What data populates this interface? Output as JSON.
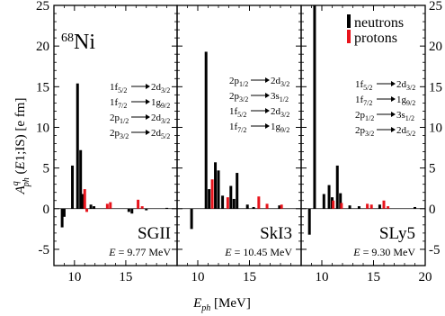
{
  "chart_data": {
    "type": "bar",
    "xlabel_symbol": "E",
    "xlabel_sub": "ph",
    "xlabel_unit": "[MeV]",
    "ylabel": {
      "A": "A",
      "sup": "q",
      "sub": "ph",
      "args_open": " (",
      "arg_E": "E",
      "args_rest": "1;IS)",
      "unit": "[e fm]"
    },
    "nucleus": {
      "mass": "68",
      "symbol": "Ni"
    },
    "legend": [
      {
        "name": "neutrons",
        "color": "#000000"
      },
      {
        "name": "protons",
        "color": "#e8141c"
      }
    ],
    "ylim": [
      -7,
      25
    ],
    "yticks": [
      -5,
      0,
      5,
      10,
      15,
      20,
      25
    ],
    "ytick_labels": [
      "-5",
      "0",
      "5",
      "10",
      "15",
      "20",
      "25"
    ],
    "panels": [
      {
        "name": "SGII",
        "energy_symbol": "E",
        "energy_label": " = 9.77 MeV",
        "xlim": [
          8,
          20
        ],
        "xticks": [
          10,
          15,
          20
        ],
        "xtick_labels": [
          "10",
          "15",
          ""
        ],
        "transitions": [
          {
            "from": "1f",
            "from_sub": "5/2",
            "to": "2d",
            "to_sub": "3/2"
          },
          {
            "from": "1f",
            "from_sub": "7/2",
            "to": "1g",
            "to_sub": "9/2"
          },
          {
            "from": "2p",
            "from_sub": "1/2",
            "to": "2d",
            "to_sub": "3/2"
          },
          {
            "from": "2p",
            "from_sub": "3/2",
            "to": "2d",
            "to_sub": "5/2"
          }
        ],
        "neutrons": [
          [
            8.8,
            -2.3
          ],
          [
            9.0,
            -1.0
          ],
          [
            9.8,
            5.3
          ],
          [
            10.3,
            15.4
          ],
          [
            10.6,
            7.2
          ],
          [
            10.8,
            1.8
          ],
          [
            11.6,
            0.5
          ],
          [
            11.9,
            0.3
          ],
          [
            15.3,
            -0.4
          ],
          [
            15.6,
            -0.6
          ],
          [
            17.0,
            -0.2
          ],
          [
            19.0,
            0.1
          ]
        ],
        "protons": [
          [
            11.0,
            2.4
          ],
          [
            11.2,
            -0.4
          ],
          [
            13.2,
            0.6
          ],
          [
            13.5,
            0.8
          ],
          [
            16.2,
            1.1
          ],
          [
            16.6,
            0.3
          ]
        ]
      },
      {
        "name": "SkI3",
        "energy_symbol": "E",
        "energy_label": " = 10.45 MeV",
        "xlim": [
          8,
          20
        ],
        "xticks": [
          10,
          15,
          20
        ],
        "xtick_labels": [
          "10",
          "15",
          ""
        ],
        "transitions": [
          {
            "from": "2p",
            "from_sub": "1/2",
            "to": "2d",
            "to_sub": "3/2"
          },
          {
            "from": "2p",
            "from_sub": "3/2",
            "to": "3s",
            "to_sub": "1/2"
          },
          {
            "from": "1f",
            "from_sub": "5/2",
            "to": "2d",
            "to_sub": "3/2"
          },
          {
            "from": "1f",
            "from_sub": "7/2",
            "to": "1g",
            "to_sub": "9/2"
          }
        ],
        "neutrons": [
          [
            9.4,
            -2.5
          ],
          [
            10.8,
            19.3
          ],
          [
            11.1,
            2.4
          ],
          [
            11.7,
            5.7
          ],
          [
            12.0,
            4.7
          ],
          [
            12.4,
            1.6
          ],
          [
            13.2,
            2.8
          ],
          [
            13.5,
            1.2
          ],
          [
            13.8,
            4.4
          ],
          [
            14.8,
            0.5
          ],
          [
            15.4,
            0.2
          ],
          [
            17.9,
            0.4
          ]
        ],
        "protons": [
          [
            11.4,
            3.6
          ],
          [
            12.9,
            1.4
          ],
          [
            15.9,
            1.5
          ],
          [
            16.7,
            0.6
          ],
          [
            18.1,
            0.5
          ]
        ]
      },
      {
        "name": "SLy5",
        "energy_symbol": "E",
        "energy_label": " = 9.30 MeV",
        "xlim": [
          8,
          20
        ],
        "xticks": [
          10,
          15,
          20
        ],
        "xtick_labels": [
          "10",
          "15",
          "20"
        ],
        "transitions": [
          {
            "from": "1f",
            "from_sub": "5/2",
            "to": "2d",
            "to_sub": "3/2"
          },
          {
            "from": "1f",
            "from_sub": "7/2",
            "to": "1g",
            "to_sub": "9/2"
          },
          {
            "from": "2p",
            "from_sub": "1/2",
            "to": "3s",
            "to_sub": "1/2"
          },
          {
            "from": "2p",
            "from_sub": "3/2",
            "to": "2d",
            "to_sub": "5/2"
          }
        ],
        "neutrons": [
          [
            8.8,
            -3.2
          ],
          [
            9.3,
            25.0
          ],
          [
            10.2,
            1.8
          ],
          [
            10.7,
            2.9
          ],
          [
            11.0,
            1.4
          ],
          [
            11.5,
            5.3
          ],
          [
            11.8,
            1.9
          ],
          [
            12.7,
            0.4
          ],
          [
            13.6,
            0.3
          ],
          [
            15.6,
            0.5
          ],
          [
            19.0,
            0.2
          ]
        ],
        "protons": [
          [
            11.1,
            1.0
          ],
          [
            11.9,
            0.7
          ],
          [
            14.4,
            0.6
          ],
          [
            14.8,
            0.5
          ],
          [
            16.0,
            1.0
          ],
          [
            16.4,
            0.3
          ]
        ]
      }
    ]
  }
}
